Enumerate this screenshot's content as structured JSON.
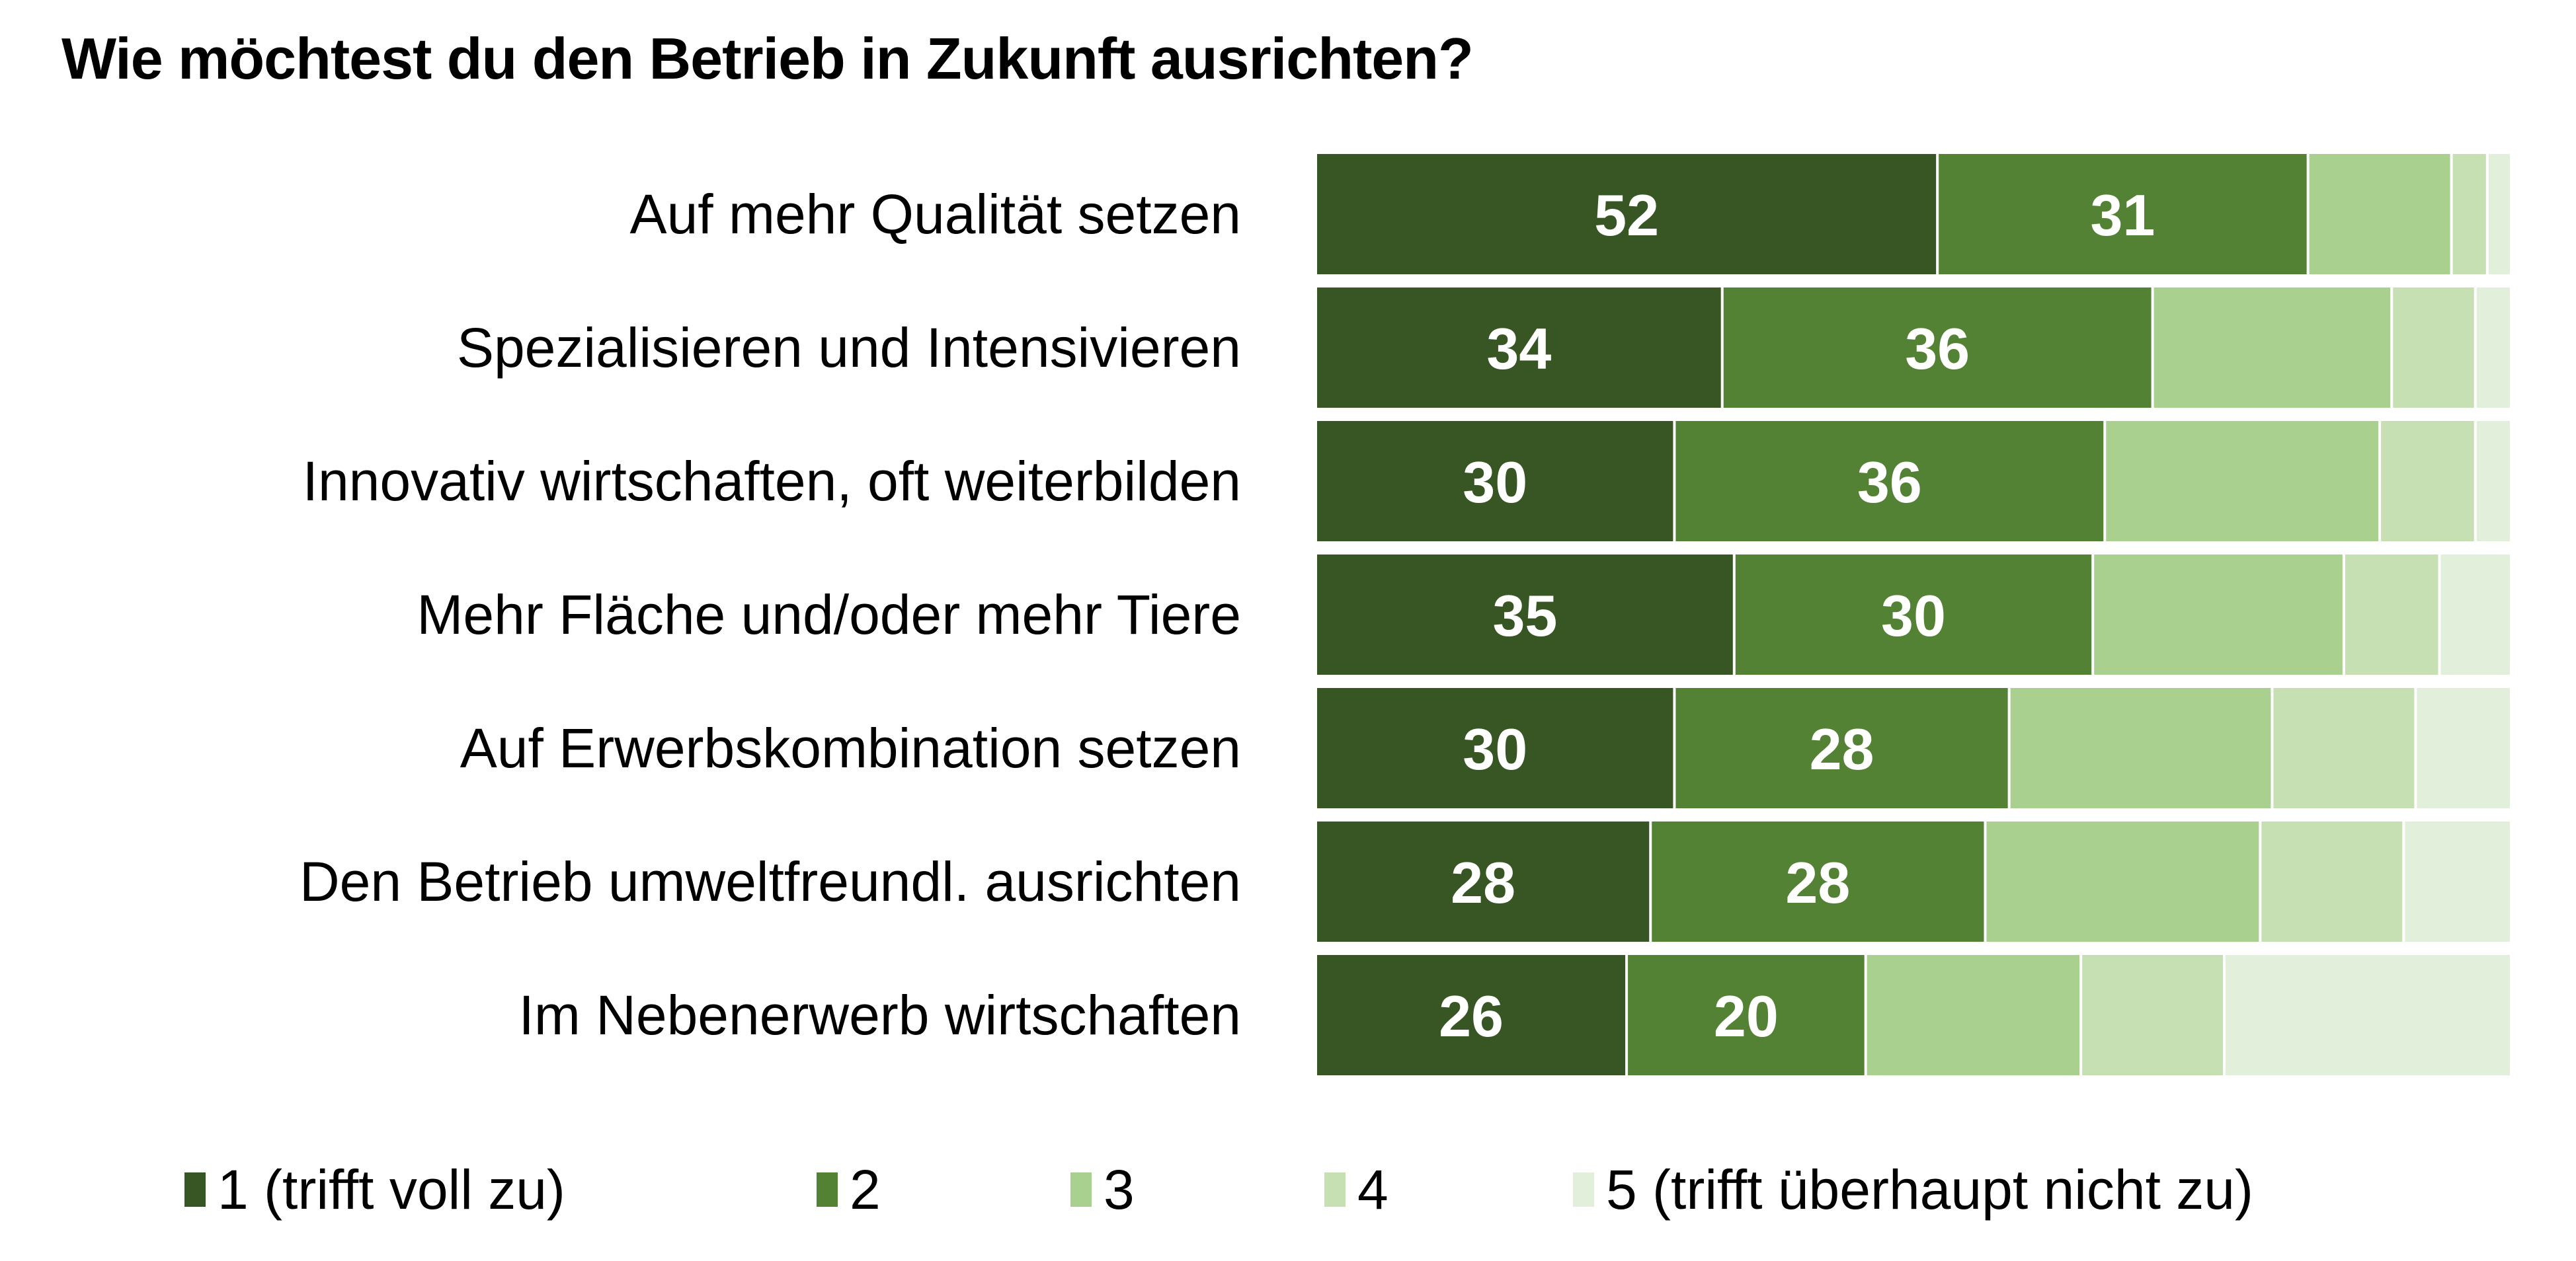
{
  "chart_data": {
    "type": "bar",
    "orientation": "horizontal",
    "stacked": true,
    "title": "Wie möchtest du den Betrieb in Zukunft ausrichten?",
    "xlabel": "",
    "ylabel": "",
    "xlim": [
      0,
      100
    ],
    "grid": false,
    "legend_position": "bottom",
    "categories": [
      "Auf mehr Qualität setzen",
      "Spezialisieren und Intensivieren",
      "Innovativ wirtschaften, oft weiterbilden",
      "Mehr Fläche und/oder mehr Tiere",
      "Auf Erwerbskombination setzen",
      "Den Betrieb umweltfreundl. ausrichten",
      "Im Nebenerwerb wirtschaften"
    ],
    "series": [
      {
        "name": "1 (trifft voll zu)",
        "color": "#375623",
        "values": [
          52,
          34,
          30,
          35,
          30,
          28,
          26
        ],
        "show_labels": true
      },
      {
        "name": "2",
        "color": "#548235",
        "values": [
          31,
          36,
          36,
          30,
          28,
          28,
          20
        ],
        "show_labels": true
      },
      {
        "name": "3",
        "color": "#A9D08E",
        "values": [
          12,
          20,
          23,
          21,
          22,
          23,
          18
        ],
        "show_labels": false
      },
      {
        "name": "4",
        "color": "#C6E0B4",
        "values": [
          3,
          7,
          8,
          8,
          12,
          12,
          12
        ],
        "show_labels": false
      },
      {
        "name": "5 (trifft überhaupt nicht zu)",
        "color": "#E2EFDA",
        "values": [
          2,
          3,
          3,
          6,
          8,
          9,
          24
        ],
        "show_labels": false
      }
    ]
  }
}
